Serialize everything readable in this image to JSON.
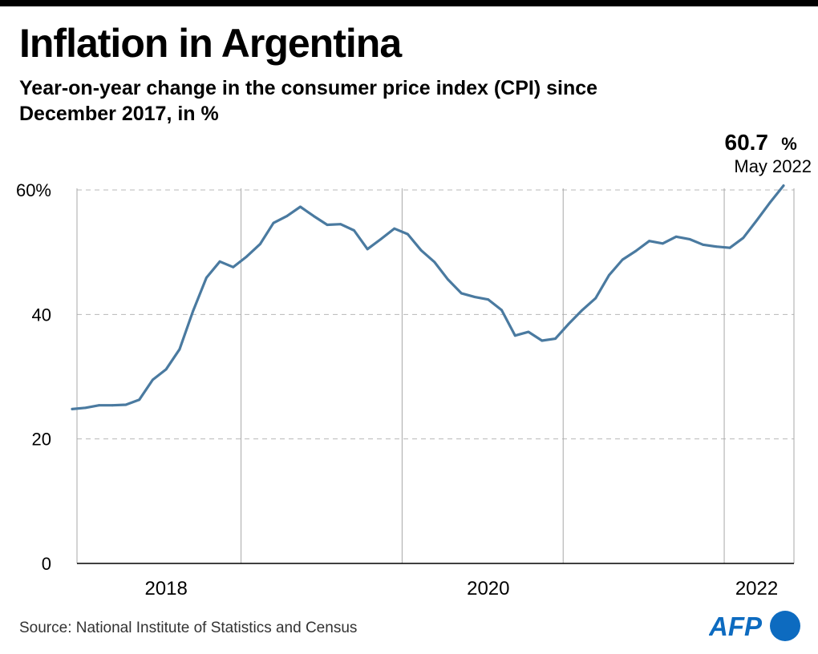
{
  "header": {
    "title": "Inflation in Argentina",
    "subtitle": "Year-on-year change in the consumer price index (CPI) since December 2017, in %"
  },
  "chart_data": {
    "type": "line",
    "title": "Inflation in Argentina",
    "subtitle": "Year-on-year change in the consumer price index (CPI) since December 2017, in %",
    "xlabel": "",
    "ylabel": "",
    "ylim": [
      0,
      60
    ],
    "y_ticks": [
      {
        "value": 0,
        "label": "0"
      },
      {
        "value": 20,
        "label": "20"
      },
      {
        "value": 40,
        "label": "40"
      },
      {
        "value": 60,
        "label": "60%"
      }
    ],
    "x_ticks": [
      {
        "date": "2018-07",
        "label": "2018"
      },
      {
        "date": "2020-07",
        "label": "2020"
      },
      {
        "date": "2022-03",
        "label": "2022"
      }
    ],
    "x_dividers": [
      "2019-01",
      "2020-01",
      "2021-01",
      "2022-01"
    ],
    "x_range": [
      "2017-12",
      "2022-05"
    ],
    "grid": "horizontal-dashed",
    "color": "#4a7aa0",
    "series": [
      {
        "name": "",
        "x": [
          "2017-12",
          "2018-01",
          "2018-02",
          "2018-03",
          "2018-04",
          "2018-05",
          "2018-06",
          "2018-07",
          "2018-08",
          "2018-09",
          "2018-10",
          "2018-11",
          "2018-12",
          "2019-01",
          "2019-02",
          "2019-03",
          "2019-04",
          "2019-05",
          "2019-06",
          "2019-07",
          "2019-08",
          "2019-09",
          "2019-10",
          "2019-11",
          "2019-12",
          "2020-01",
          "2020-02",
          "2020-03",
          "2020-04",
          "2020-05",
          "2020-06",
          "2020-07",
          "2020-08",
          "2020-09",
          "2020-10",
          "2020-11",
          "2020-12",
          "2021-01",
          "2021-02",
          "2021-03",
          "2021-04",
          "2021-05",
          "2021-06",
          "2021-07",
          "2021-08",
          "2021-09",
          "2021-10",
          "2021-11",
          "2021-12",
          "2022-01",
          "2022-02",
          "2022-03",
          "2022-04",
          "2022-05"
        ],
        "values": [
          24.8,
          25.0,
          25.4,
          25.4,
          25.5,
          26.3,
          29.5,
          31.2,
          34.4,
          40.5,
          45.9,
          48.5,
          47.6,
          49.3,
          51.3,
          54.7,
          55.8,
          57.3,
          55.8,
          54.4,
          54.5,
          53.5,
          50.5,
          52.1,
          53.8,
          52.9,
          50.3,
          48.4,
          45.6,
          43.4,
          42.8,
          42.4,
          40.7,
          36.6,
          37.2,
          35.8,
          36.1,
          38.5,
          40.7,
          42.6,
          46.3,
          48.8,
          50.2,
          51.8,
          51.4,
          52.5,
          52.1,
          51.2,
          50.9,
          50.7,
          52.3,
          55.1,
          58.0,
          60.7
        ]
      }
    ],
    "annotation": {
      "date": "2022-05",
      "value": "60.7",
      "unit": "%",
      "label": "May 2022"
    }
  },
  "footer": {
    "source": "Source: National Institute of Statistics and Census",
    "logo_text": "AFP",
    "logo_color": "#0d6bc0"
  }
}
